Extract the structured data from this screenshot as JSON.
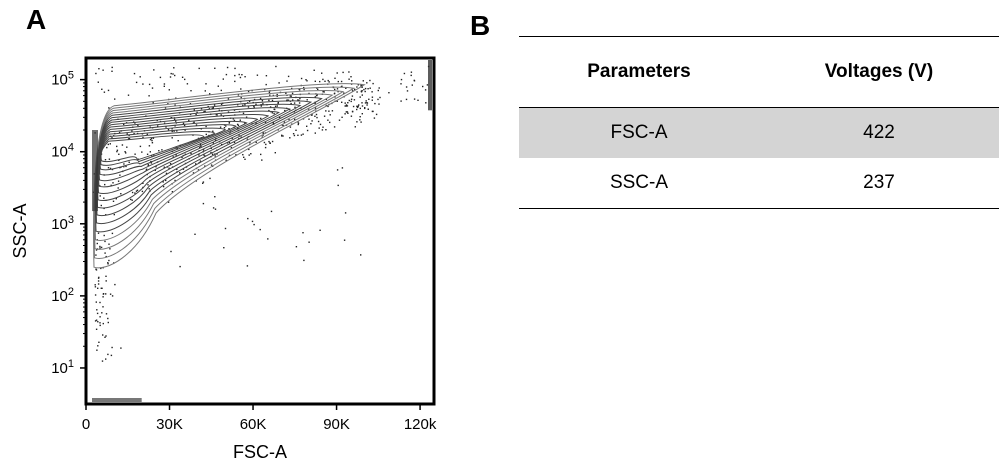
{
  "panels": {
    "a": "A",
    "b": "B"
  },
  "chart_data": {
    "type": "scatter",
    "title": "",
    "xlabel": "FSC-A",
    "ylabel": "SSC-A",
    "xlim": [
      0,
      125000
    ],
    "ylim_log10": [
      0.5,
      5.3
    ],
    "y_scale": "log",
    "x_ticks": [
      {
        "value": 0,
        "label": "0"
      },
      {
        "value": 30000,
        "label": "30K"
      },
      {
        "value": 60000,
        "label": "60K"
      },
      {
        "value": 90000,
        "label": "90K"
      },
      {
        "value": 120000,
        "label": "120k"
      }
    ],
    "y_ticks": [
      {
        "value": 10,
        "base": "10",
        "exp": "1"
      },
      {
        "value": 100,
        "base": "10",
        "exp": "2"
      },
      {
        "value": 1000,
        "base": "10",
        "exp": "3"
      },
      {
        "value": 10000,
        "base": "10",
        "exp": "4"
      },
      {
        "value": 100000,
        "base": "10",
        "exp": "5"
      }
    ],
    "population_core": {
      "x": 18000,
      "y": 8000
    },
    "population_ridge": [
      {
        "x": 6000,
        "y": 40000
      },
      {
        "x": 30000,
        "y": 45000
      },
      {
        "x": 60000,
        "y": 60000
      },
      {
        "x": 90000,
        "y": 80000
      },
      {
        "x": 100000,
        "y": 85000
      }
    ],
    "grid": false,
    "legend": "none"
  },
  "table": {
    "headers": [
      "Parameters",
      "Voltages (V)"
    ],
    "rows": [
      {
        "parameter": "FSC-A",
        "voltage": "422"
      },
      {
        "parameter": "SSC-A",
        "voltage": "237"
      }
    ]
  }
}
